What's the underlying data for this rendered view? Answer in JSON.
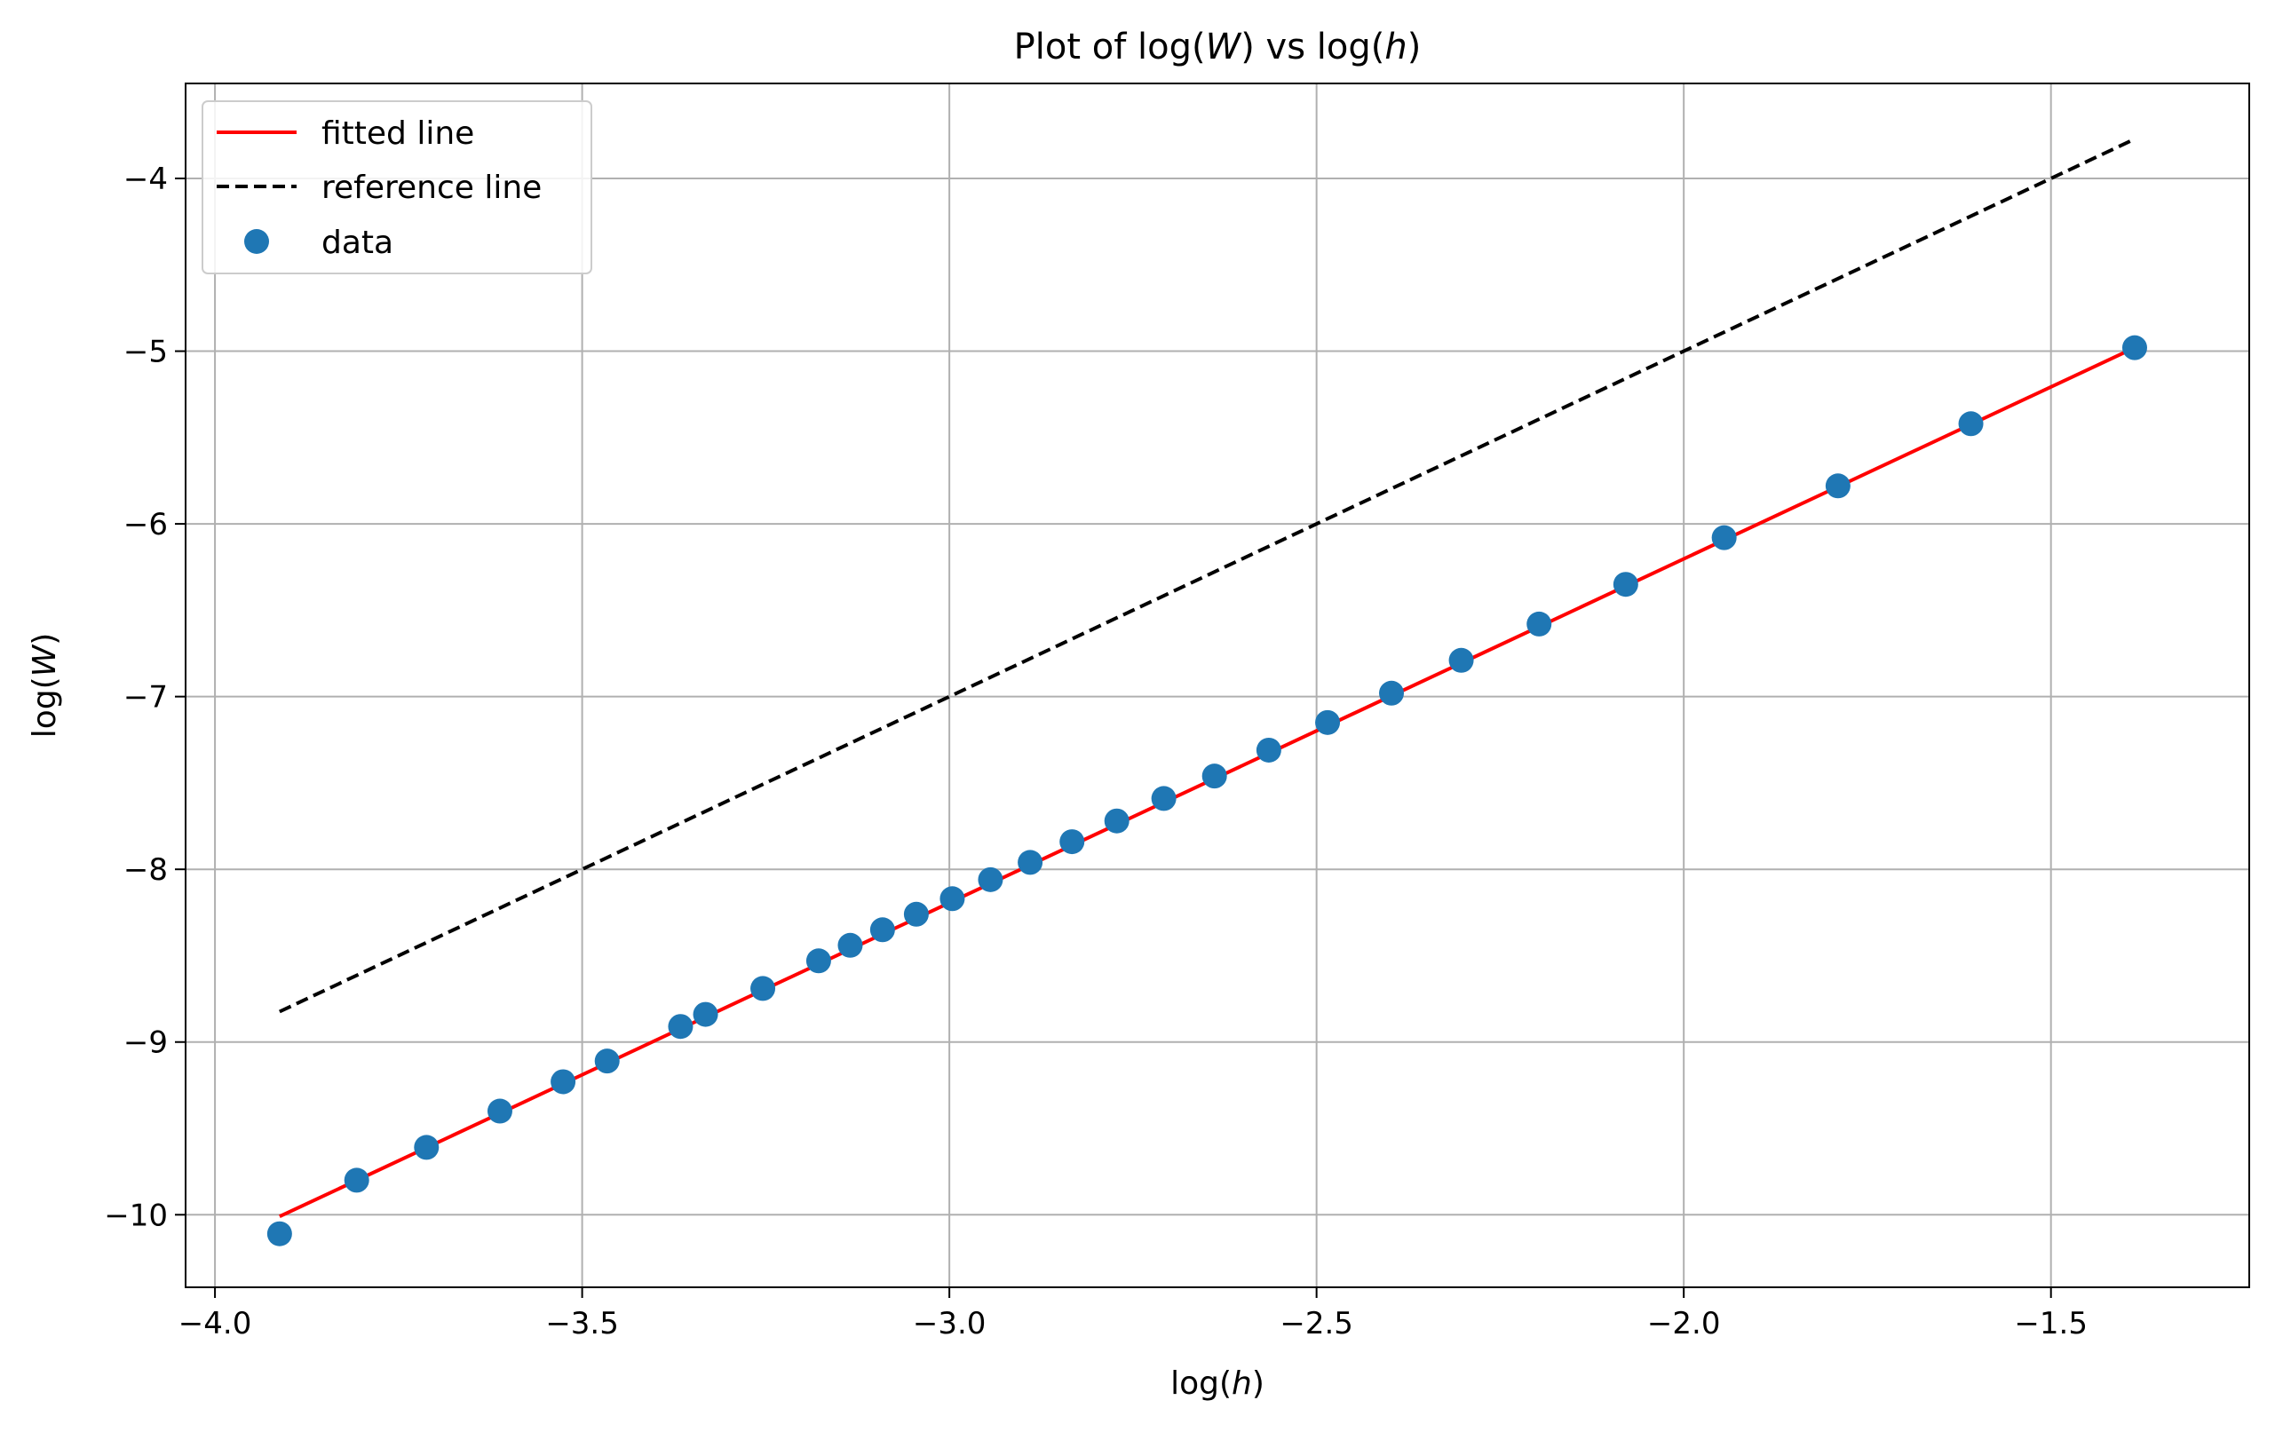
{
  "chart_data": {
    "type": "line",
    "title": "Plot of log(W) vs log(h)",
    "title_parts": {
      "pre": "Plot of log(",
      "v1": "W",
      "mid": ") vs log(",
      "v2": "h",
      "post": ")"
    },
    "xlabel": "log(h)",
    "xlabel_parts": {
      "pre": "log(",
      "var": "h",
      "post": ")"
    },
    "ylabel": "log(W)",
    "ylabel_parts": {
      "pre": "log(",
      "var": "W",
      "post": ")"
    },
    "xlim": [
      -4.04,
      -1.23
    ],
    "ylim": [
      -10.42,
      -3.45
    ],
    "xticks": [
      {
        "value": -4.0,
        "label": "−4.0"
      },
      {
        "value": -3.5,
        "label": "−3.5"
      },
      {
        "value": -3.0,
        "label": "−3.0"
      },
      {
        "value": -2.5,
        "label": "−2.5"
      },
      {
        "value": -2.0,
        "label": "−2.0"
      },
      {
        "value": -1.5,
        "label": "−1.5"
      }
    ],
    "yticks": [
      {
        "value": -4,
        "label": "−4"
      },
      {
        "value": -5,
        "label": "−5"
      },
      {
        "value": -6,
        "label": "−6"
      },
      {
        "value": -7,
        "label": "−7"
      },
      {
        "value": -8,
        "label": "−8"
      },
      {
        "value": -9,
        "label": "−9"
      },
      {
        "value": -10,
        "label": "−10"
      }
    ],
    "grid": true,
    "legend_position": "upper-left",
    "series": [
      {
        "name": "fitted line",
        "kind": "line",
        "color": "#ff0000",
        "dash": "solid",
        "x": [
          -3.912,
          -1.386
        ],
        "y": [
          -10.01,
          -4.98
        ]
      },
      {
        "name": "reference line",
        "kind": "line",
        "color": "#000000",
        "dash": "dashed",
        "x": [
          -3.912,
          -1.386
        ],
        "y": [
          -8.824,
          -3.772
        ]
      },
      {
        "name": "data",
        "kind": "scatter",
        "color": "#1f77b4",
        "x": [
          -3.912,
          -3.807,
          -3.712,
          -3.612,
          -3.526,
          -3.466,
          -3.366,
          -3.332,
          -3.254,
          -3.178,
          -3.135,
          -3.091,
          -3.045,
          -2.996,
          -2.944,
          -2.89,
          -2.833,
          -2.772,
          -2.708,
          -2.639,
          -2.565,
          -2.485,
          -2.398,
          -2.303,
          -2.197,
          -2.079,
          -1.945,
          -1.79,
          -1.609,
          -1.386
        ],
        "y": [
          -10.11,
          -9.8,
          -9.61,
          -9.4,
          -9.23,
          -9.11,
          -8.91,
          -8.84,
          -8.69,
          -8.53,
          -8.44,
          -8.35,
          -8.26,
          -8.17,
          -8.06,
          -7.96,
          -7.84,
          -7.72,
          -7.59,
          -7.46,
          -7.31,
          -7.15,
          -6.98,
          -6.79,
          -6.58,
          -6.35,
          -6.08,
          -5.78,
          -5.42,
          -4.98
        ]
      }
    ]
  }
}
